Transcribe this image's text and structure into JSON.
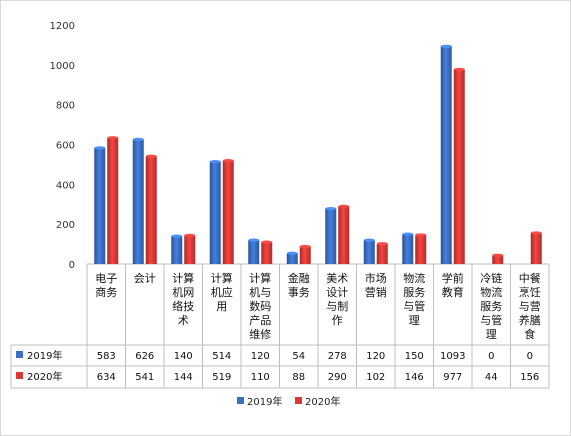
{
  "chart_data": {
    "type": "bar",
    "categories": [
      "电子\n商务",
      "会计",
      "计算\n机网\n络技\n术",
      "计算\n机应\n用",
      "计算\n机与\n数码\n产品\n维修",
      "金融\n事务",
      "美术\n设计\n与制\n作",
      "市场\n营销",
      "物流\n服务\n与管\n理",
      "学前\n教育",
      "冷链\n物流\n服务\n与管\n理",
      "中餐\n烹饪\n与营\n养膳\n食"
    ],
    "series": [
      {
        "name": "2019年",
        "color": "#3a6fc4",
        "values": [
          583,
          626,
          140,
          514,
          120,
          54,
          278,
          120,
          150,
          1093,
          0,
          0
        ]
      },
      {
        "name": "2020年",
        "color": "#d93a36",
        "values": [
          634,
          541,
          144,
          519,
          110,
          88,
          290,
          102,
          146,
          977,
          44,
          156
        ]
      }
    ],
    "y_ticks": [
      "0",
      "200",
      "400",
      "600",
      "800",
      "1000",
      "1200"
    ],
    "ylim": [
      0,
      1200
    ],
    "legend_position": "bottom",
    "has_data_table": true
  }
}
